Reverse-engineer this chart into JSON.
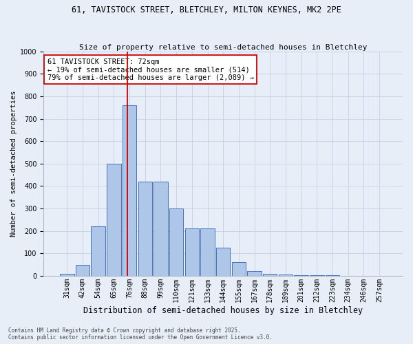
{
  "title_line1": "61, TAVISTOCK STREET, BLETCHLEY, MILTON KEYNES, MK2 2PE",
  "title_line2": "Size of property relative to semi-detached houses in Bletchley",
  "xlabel": "Distribution of semi-detached houses by size in Bletchley",
  "ylabel": "Number of semi-detached properties",
  "categories": [
    "31sqm",
    "42sqm",
    "54sqm",
    "65sqm",
    "76sqm",
    "88sqm",
    "99sqm",
    "110sqm",
    "121sqm",
    "133sqm",
    "144sqm",
    "155sqm",
    "167sqm",
    "178sqm",
    "189sqm",
    "201sqm",
    "212sqm",
    "223sqm",
    "234sqm",
    "246sqm",
    "257sqm"
  ],
  "values": [
    10,
    50,
    220,
    500,
    760,
    420,
    420,
    300,
    210,
    210,
    125,
    60,
    20,
    10,
    5,
    3,
    2,
    2,
    1,
    1,
    1
  ],
  "bar_color": "#aec6e8",
  "bar_edge_color": "#4472c4",
  "vline_color": "#cc0000",
  "vline_x": 3.85,
  "annotation_text": "61 TAVISTOCK STREET: 72sqm\n← 19% of semi-detached houses are smaller (514)\n79% of semi-detached houses are larger (2,089) →",
  "annotation_box_color": "#ffffff",
  "annotation_box_edge": "#cc0000",
  "ylim": [
    0,
    1000
  ],
  "yticks": [
    0,
    100,
    200,
    300,
    400,
    500,
    600,
    700,
    800,
    900,
    1000
  ],
  "grid_color": "#c8d4e8",
  "background_color": "#e8eef8",
  "footnote": "Contains HM Land Registry data © Crown copyright and database right 2025.\nContains public sector information licensed under the Open Government Licence v3.0.",
  "fig_width": 6.0,
  "fig_height": 5.0,
  "title_fontsize": 8.5,
  "subtitle_fontsize": 8.0,
  "xlabel_fontsize": 8.5,
  "ylabel_fontsize": 7.5,
  "tick_fontsize": 7.0,
  "annot_fontsize": 7.5,
  "footnote_fontsize": 5.5
}
